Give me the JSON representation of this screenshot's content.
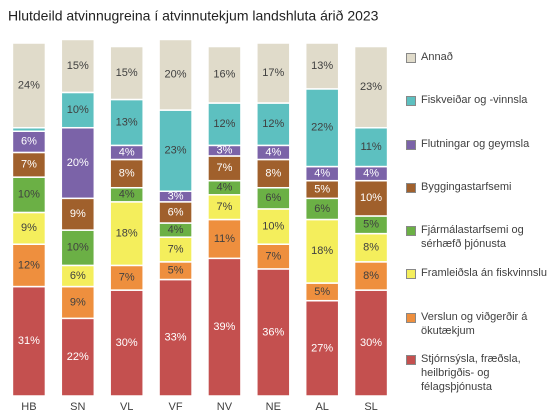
{
  "chart_data": {
    "type": "stacked_bar",
    "title": "Hlutdeild atvinnugreina í atvinnutekjum landshluta árið 2023",
    "categories": [
      "HB",
      "SN",
      "VL",
      "VF",
      "NV",
      "NE",
      "AL",
      "SL"
    ],
    "ylim": [
      0,
      100
    ],
    "series": [
      {
        "name": "Stjórnsýsla, fræðsla, heilbrigðis- og félagsþjónusta",
        "color": "#c4504f",
        "label_color": "#ffffff",
        "values": [
          31,
          22,
          30,
          33,
          39,
          36,
          27,
          30
        ],
        "value_labels": [
          "31%",
          "22%",
          "30%",
          "33%",
          "39%",
          "36%",
          "27%",
          "30%"
        ]
      },
      {
        "name": "Verslun og viðgerðir á ökutækjum",
        "color": "#ee8f3e",
        "label_color": "#404040",
        "values": [
          12,
          9,
          7,
          5,
          11,
          7,
          5,
          8
        ],
        "value_labels": [
          "12%",
          "9%",
          "7%",
          "5%",
          "11%",
          "7%",
          "5%",
          "8%"
        ]
      },
      {
        "name": "Framleiðsla án fiskvinnslu",
        "color": "#f4ee5c",
        "label_color": "#404040",
        "values": [
          9,
          6,
          18,
          7,
          7,
          10,
          18,
          8
        ],
        "value_labels": [
          "9%",
          "6%",
          "18%",
          "7%",
          "7%",
          "10%",
          "18%",
          "8%"
        ]
      },
      {
        "name": "Fjármálastarfsemi og sérhæfð þjónusta",
        "color": "#6bb045",
        "label_color": "#404040",
        "values": [
          10,
          10,
          4,
          4,
          4,
          6,
          6,
          5
        ],
        "value_labels": [
          "10%",
          "10%",
          "4%",
          "4%",
          "4%",
          "6%",
          "6%",
          "5%"
        ]
      },
      {
        "name": "Byggingastarfsemi",
        "color": "#a0602c",
        "label_color": "#ffffff",
        "values": [
          7,
          9,
          8,
          6,
          7,
          8,
          5,
          10
        ],
        "value_labels": [
          "7%",
          "9%",
          "8%",
          "6%",
          "7%",
          "8%",
          "5%",
          "10%"
        ]
      },
      {
        "name": "Flutningar og geymsla",
        "color": "#7b63a8",
        "label_color": "#ffffff",
        "values": [
          6,
          20,
          4,
          3,
          3,
          4,
          4,
          4
        ],
        "value_labels": [
          "6%",
          "20%",
          "4%",
          "3%",
          "3%",
          "4%",
          "4%",
          "4%"
        ]
      },
      {
        "name": "Fiskveiðar og -vinnsla",
        "color": "#5dc0c0",
        "label_color": "#404040",
        "values": [
          1,
          10,
          13,
          23,
          12,
          12,
          22,
          11
        ],
        "value_labels": [
          null,
          "10%",
          "13%",
          "23%",
          "12%",
          "12%",
          "22%",
          "11%"
        ]
      },
      {
        "name": "Annað",
        "color": "#e0dbca",
        "label_color": "#404040",
        "values": [
          24,
          15,
          15,
          20,
          16,
          17,
          13,
          23
        ],
        "value_labels": [
          "24%",
          "15%",
          "15%",
          "20%",
          "16%",
          "17%",
          "13%",
          "23%"
        ]
      }
    ]
  }
}
